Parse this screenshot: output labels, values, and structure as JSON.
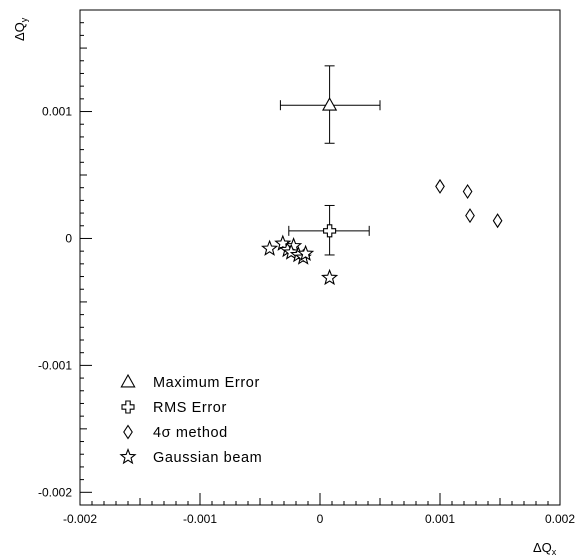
{
  "chart_data": {
    "type": "scatter",
    "title": "",
    "xlabel": "ΔQx",
    "ylabel": "ΔQy",
    "xlim": [
      -0.002,
      0.002
    ],
    "ylim": [
      -0.0021,
      0.0018
    ],
    "grid": false,
    "legend_position": "bottom-left",
    "x_ticks": [
      {
        "value": -0.002,
        "label": "-0.002"
      },
      {
        "value": -0.001,
        "label": "-0.001"
      },
      {
        "value": 0,
        "label": "0"
      },
      {
        "value": 0.001,
        "label": "0.001"
      },
      {
        "value": 0.002,
        "label": "0.002"
      }
    ],
    "y_ticks": [
      {
        "value": 0.001,
        "label": "0.001"
      },
      {
        "value": 0,
        "label": "0"
      },
      {
        "value": -0.001,
        "label": "-0.001"
      },
      {
        "value": -0.002,
        "label": "-0.002"
      }
    ],
    "series": [
      {
        "name": "Maximum Error",
        "marker": "triangle",
        "points": [
          {
            "x": 8e-05,
            "y": 0.00105,
            "xerr_low": 0.00041,
            "xerr_high": 0.00042,
            "yerr_low": 0.0003,
            "yerr_high": 0.00031
          }
        ]
      },
      {
        "name": "RMS Error",
        "marker": "cross",
        "points": [
          {
            "x": 8e-05,
            "y": 6e-05,
            "xerr_low": 0.00034,
            "xerr_high": 0.00033,
            "yerr_low": 0.00019,
            "yerr_high": 0.0002
          }
        ]
      },
      {
        "name": "4σ method",
        "marker": "diamond",
        "points": [
          {
            "x": 0.001,
            "y": 0.00041
          },
          {
            "x": 0.00123,
            "y": 0.00037
          },
          {
            "x": 0.00125,
            "y": 0.00018
          },
          {
            "x": 0.00148,
            "y": 0.00014
          }
        ]
      },
      {
        "name": "Gaussian beam",
        "marker": "star",
        "points": [
          {
            "x": -0.00042,
            "y": -8e-05
          },
          {
            "x": -0.00031,
            "y": -4e-05
          },
          {
            "x": -0.00027,
            "y": -9e-05
          },
          {
            "x": -0.00022,
            "y": -6e-05
          },
          {
            "x": -0.00024,
            "y": -0.00011
          },
          {
            "x": -0.00018,
            "y": -0.00013
          },
          {
            "x": -0.00014,
            "y": -0.00015
          },
          {
            "x": -0.00012,
            "y": -0.00012
          },
          {
            "x": 8e-05,
            "y": -0.00031
          }
        ]
      }
    ]
  }
}
